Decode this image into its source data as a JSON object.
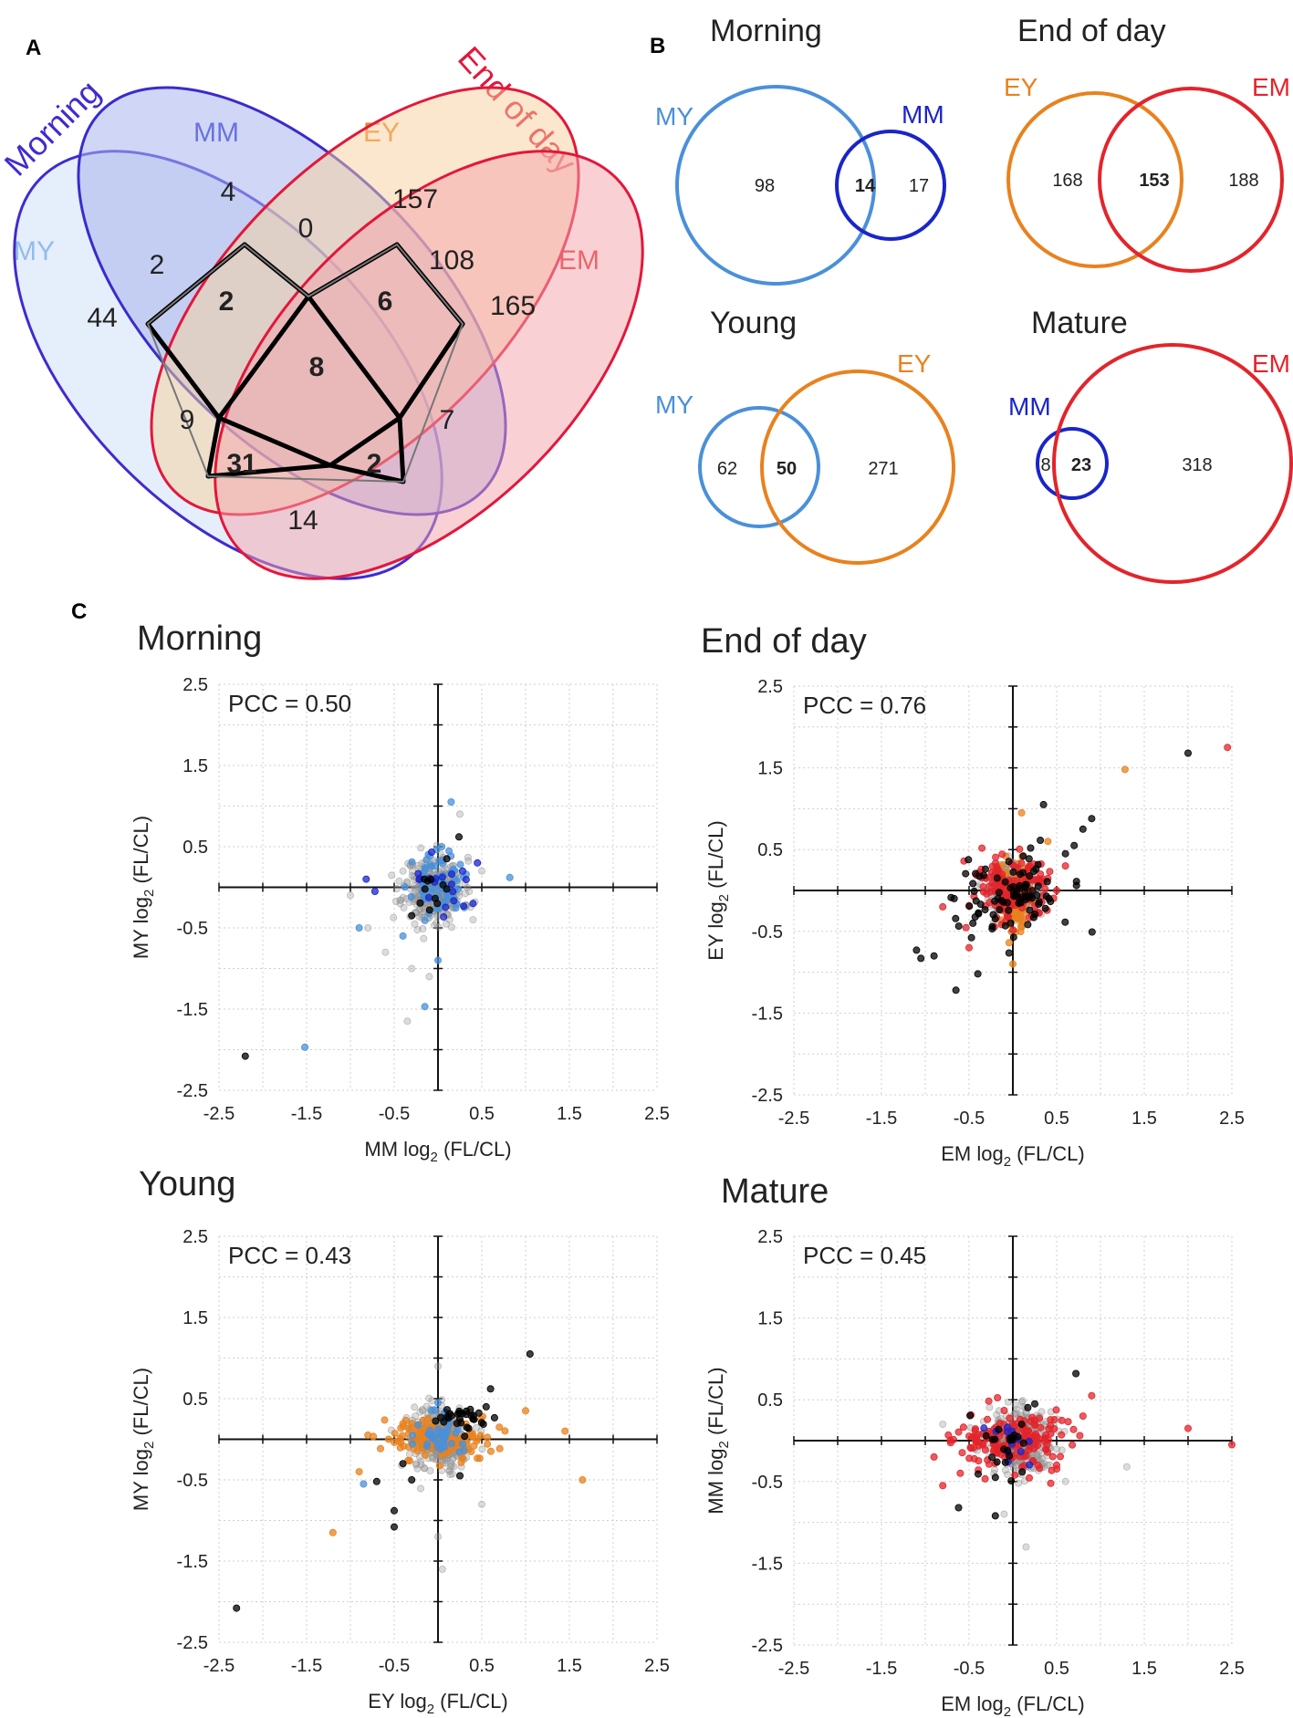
{
  "colors": {
    "morning": "#3f2bd0",
    "end_of_day": "#e3173b",
    "my": "#4a90d9",
    "mm": "#1a25c8",
    "ey": "#e8821e",
    "em": "#e3242b",
    "grey": "#9a9a9a",
    "black": "#000000"
  },
  "panel_labels": {
    "a": "A",
    "b": "B",
    "c": "C"
  },
  "panel_a": {
    "title_morning": "Morning",
    "title_end_of_day": "End of day",
    "set_labels": {
      "my": "MY",
      "mm": "MM",
      "ey": "EY",
      "em": "EM"
    },
    "regions": {
      "my_only": "44",
      "mm_only": "4",
      "ey_only": "157",
      "em_only": "165",
      "my_mm": "2",
      "mm_ey": "0",
      "ey_em": "108",
      "my_em": "14",
      "my_mm_ey": "2",
      "mm_ey_em": "6",
      "my_ey": "9",
      "mm_em": "7",
      "all": "8",
      "my_ey_em": "31",
      "my_mm_em": "2"
    }
  },
  "panel_b": {
    "morning": {
      "title": "Morning",
      "left_label": "MY",
      "right_label": "MM",
      "left_only": "98",
      "overlap": "14",
      "right_only": "17"
    },
    "end_of_day": {
      "title": "End of day",
      "left_label": "EY",
      "right_label": "EM",
      "left_only": "168",
      "overlap": "153",
      "right_only": "188"
    },
    "young": {
      "title": "Young",
      "left_label": "MY",
      "right_label": "EY",
      "left_only": "62",
      "overlap": "50",
      "right_only": "271"
    },
    "mature": {
      "title": "Mature",
      "left_label": "MM",
      "right_label": "EM",
      "left_only": "8",
      "overlap": "23",
      "right_only": "318"
    }
  },
  "chart_data": [
    {
      "type": "scatter",
      "title": "Morning",
      "annotation": "PCC = 0.50",
      "xlabel": "MM log",
      "xlabel_sub": "2",
      "xlabel_tail": " (FL/CL)",
      "ylabel": "MY log",
      "ylabel_sub": "2",
      "ylabel_tail": " (FL/CL)",
      "xlim": [
        -2.5,
        2.5
      ],
      "ylim": [
        -2.5,
        2.5
      ],
      "xticks": [
        "-2.5",
        "-1.5",
        "-0.5",
        "0.5",
        "1.5",
        "2.5"
      ],
      "yticks": [
        "2.5",
        "1.5",
        "0.5",
        "-0.5",
        "-1.5",
        "-2.5"
      ],
      "series": [
        {
          "name": "all",
          "color": "grey",
          "cluster": {
            "cx": -0.05,
            "cy": -0.03,
            "sx": 0.17,
            "sy": 0.2,
            "n": 320,
            "seed": 11
          },
          "points": [
            [
              -1.0,
              -0.1
            ],
            [
              -0.8,
              -0.5
            ],
            [
              -0.6,
              -0.8
            ],
            [
              -0.3,
              -1.0
            ],
            [
              -0.35,
              -1.65
            ],
            [
              -0.1,
              -1.1
            ],
            [
              0.4,
              -0.4
            ],
            [
              0.5,
              0.2
            ],
            [
              0.25,
              0.9
            ],
            [
              -0.4,
              0.2
            ]
          ]
        },
        {
          "name": "MY",
          "color": "my",
          "cluster": {
            "cx": 0.0,
            "cy": 0.05,
            "sx": 0.14,
            "sy": 0.18,
            "n": 70,
            "seed": 23
          },
          "points": [
            [
              -1.52,
              -1.97
            ],
            [
              -0.15,
              -1.47
            ],
            [
              0.15,
              1.05
            ],
            [
              0.82,
              0.12
            ],
            [
              0.3,
              -0.25
            ],
            [
              -0.4,
              -0.6
            ],
            [
              0.0,
              -0.9
            ],
            [
              -0.9,
              -0.5
            ]
          ]
        },
        {
          "name": "MM",
          "color": "mm",
          "cluster": {
            "cx": 0.0,
            "cy": 0.0,
            "sx": 0.2,
            "sy": 0.2,
            "n": 18,
            "seed": 31
          },
          "points": [
            [
              -0.82,
              0.1
            ],
            [
              -0.72,
              -0.05
            ],
            [
              0.45,
              0.3
            ],
            [
              0.4,
              -0.2
            ]
          ]
        },
        {
          "name": "both",
          "color": "black",
          "cluster": {
            "cx": -0.1,
            "cy": -0.05,
            "sx": 0.12,
            "sy": 0.15,
            "n": 10,
            "seed": 41
          },
          "points": [
            [
              -2.2,
              -2.08
            ],
            [
              0.24,
              0.62
            ],
            [
              -0.3,
              -0.35
            ],
            [
              0.1,
              0.35
            ]
          ]
        }
      ]
    },
    {
      "type": "scatter",
      "title": "End of day",
      "annotation": "PCC = 0.76",
      "xlabel": "EM log",
      "xlabel_sub": "2",
      "xlabel_tail": " (FL/CL)",
      "ylabel": "EY log",
      "ylabel_sub": "2",
      "ylabel_tail": " (FL/CL)",
      "xlim": [
        -2.5,
        2.5
      ],
      "ylim": [
        -2.5,
        2.5
      ],
      "xticks": [
        "-2.5",
        "-1.5",
        "-0.5",
        "0.5",
        "1.5",
        "2.5"
      ],
      "yticks": [
        "2.5",
        "1.5",
        "0.5",
        "-0.5",
        "-1.5",
        "-2.5"
      ],
      "series": [
        {
          "name": "all",
          "color": "grey",
          "cluster": {
            "cx": 0.0,
            "cy": 0.0,
            "sx": 0.16,
            "sy": 0.16,
            "n": 260,
            "seed": 51
          },
          "points": []
        },
        {
          "name": "EY",
          "color": "ey",
          "cluster": {
            "cx": 0.02,
            "cy": -0.05,
            "sx": 0.1,
            "sy": 0.25,
            "n": 110,
            "seed": 61
          },
          "points": [
            [
              1.28,
              1.48
            ],
            [
              0.0,
              -0.9
            ],
            [
              0.1,
              0.95
            ],
            [
              0.4,
              0.6
            ]
          ]
        },
        {
          "name": "EM",
          "color": "em",
          "cluster": {
            "cx": 0.0,
            "cy": 0.0,
            "sx": 0.25,
            "sy": 0.22,
            "n": 150,
            "seed": 71
          },
          "points": [
            [
              2.45,
              1.75
            ],
            [
              -0.8,
              -0.2
            ],
            [
              0.6,
              0.3
            ],
            [
              0.5,
              0.0
            ],
            [
              -0.5,
              -0.7
            ]
          ]
        },
        {
          "name": "both",
          "color": "black",
          "cluster": {
            "cx": -0.05,
            "cy": -0.05,
            "sx": 0.3,
            "sy": 0.28,
            "n": 90,
            "seed": 81
          },
          "points": [
            [
              2.0,
              1.68
            ],
            [
              0.9,
              0.88
            ],
            [
              0.8,
              0.75
            ],
            [
              0.7,
              0.55
            ],
            [
              -1.1,
              -0.73
            ],
            [
              -1.05,
              -0.83
            ],
            [
              -0.9,
              -0.8
            ],
            [
              -0.65,
              -1.22
            ],
            [
              -0.4,
              -1.02
            ],
            [
              0.35,
              1.05
            ],
            [
              0.6,
              0.45
            ]
          ]
        }
      ]
    },
    {
      "type": "scatter",
      "title": "Young",
      "annotation": "PCC = 0.43",
      "xlabel": "EY log",
      "xlabel_sub": "2",
      "xlabel_tail": " (FL/CL)",
      "ylabel": "MY log",
      "ylabel_sub": "2",
      "ylabel_tail": " (FL/CL)",
      "xlim": [
        -2.5,
        2.5
      ],
      "ylim": [
        -2.5,
        2.5
      ],
      "xticks": [
        "-2.5",
        "-1.5",
        "-0.5",
        "0.5",
        "1.5",
        "2.5"
      ],
      "yticks": [
        "2.5",
        "1.5",
        "0.5",
        "-0.5",
        "-1.5",
        "-2.5"
      ],
      "series": [
        {
          "name": "all",
          "color": "grey",
          "cluster": {
            "cx": 0.0,
            "cy": 0.0,
            "sx": 0.17,
            "sy": 0.2,
            "n": 300,
            "seed": 91
          },
          "points": [
            [
              0.0,
              -1.2
            ],
            [
              0.05,
              -1.6
            ],
            [
              0.5,
              -0.8
            ],
            [
              -0.3,
              0.2
            ],
            [
              0.0,
              0.9
            ]
          ]
        },
        {
          "name": "EY",
          "color": "ey",
          "cluster": {
            "cx": 0.0,
            "cy": 0.0,
            "sx": 0.3,
            "sy": 0.12,
            "n": 140,
            "seed": 101
          },
          "points": [
            [
              -1.2,
              -1.15
            ],
            [
              1.65,
              -0.5
            ],
            [
              1.45,
              0.1
            ],
            [
              1.0,
              0.35
            ],
            [
              -0.8,
              0.05
            ],
            [
              -0.9,
              -0.4
            ],
            [
              0.7,
              0.15
            ]
          ]
        },
        {
          "name": "MY",
          "color": "my",
          "cluster": {
            "cx": 0.0,
            "cy": 0.05,
            "sx": 0.12,
            "sy": 0.15,
            "n": 50,
            "seed": 111
          },
          "points": [
            [
              -0.85,
              -0.55
            ],
            [
              0.0,
              0.45
            ]
          ]
        },
        {
          "name": "both",
          "color": "black",
          "cluster": {
            "cx": 0.25,
            "cy": 0.28,
            "sx": 0.12,
            "sy": 0.08,
            "n": 28,
            "seed": 121
          },
          "points": [
            [
              -2.3,
              -2.08
            ],
            [
              1.05,
              1.05
            ],
            [
              0.6,
              0.62
            ],
            [
              0.55,
              0.4
            ],
            [
              0.4,
              0.25
            ],
            [
              -0.7,
              -0.52
            ],
            [
              -0.5,
              -0.88
            ],
            [
              -0.5,
              -1.08
            ],
            [
              -0.3,
              -0.5
            ],
            [
              -0.4,
              -0.3
            ],
            [
              0.25,
              -0.45
            ]
          ]
        }
      ]
    },
    {
      "type": "scatter",
      "title": "Mature",
      "annotation": "PCC = 0.45",
      "xlabel": "EM log",
      "xlabel_sub": "2",
      "xlabel_tail": " (FL/CL)",
      "ylabel": "MM log",
      "ylabel_sub": "2",
      "ylabel_tail": " (FL/CL)",
      "xlim": [
        -2.5,
        2.5
      ],
      "ylim": [
        -2.5,
        2.5
      ],
      "xticks": [
        "-2.5",
        "-1.5",
        "-0.5",
        "0.5",
        "1.5",
        "2.5"
      ],
      "yticks": [
        "2.5",
        "1.5",
        "0.5",
        "-0.5",
        "-1.5",
        "-2.5"
      ],
      "series": [
        {
          "name": "all",
          "color": "grey",
          "cluster": {
            "cx": 0.05,
            "cy": 0.0,
            "sx": 0.2,
            "sy": 0.2,
            "n": 300,
            "seed": 131
          },
          "points": [
            [
              1.3,
              -0.32
            ],
            [
              0.15,
              -1.3
            ],
            [
              -0.1,
              -0.9
            ],
            [
              0.6,
              -0.5
            ],
            [
              -0.8,
              0.2
            ]
          ]
        },
        {
          "name": "EM",
          "color": "em",
          "cluster": {
            "cx": 0.0,
            "cy": 0.0,
            "sx": 0.3,
            "sy": 0.17,
            "n": 180,
            "seed": 141
          },
          "points": [
            [
              2.5,
              -0.05
            ],
            [
              2.0,
              0.15
            ],
            [
              0.9,
              0.55
            ],
            [
              0.8,
              0.3
            ],
            [
              -0.8,
              -0.55
            ],
            [
              -0.9,
              -0.2
            ],
            [
              -0.6,
              -0.4
            ],
            [
              0.5,
              -0.3
            ]
          ]
        },
        {
          "name": "MM",
          "color": "mm",
          "cluster": {
            "cx": 0.0,
            "cy": 0.0,
            "sx": 0.12,
            "sy": 0.12,
            "n": 12,
            "seed": 151
          },
          "points": []
        },
        {
          "name": "both",
          "color": "black",
          "cluster": {
            "cx": -0.1,
            "cy": -0.05,
            "sx": 0.18,
            "sy": 0.2,
            "n": 22,
            "seed": 161
          },
          "points": [
            [
              0.72,
              0.82
            ],
            [
              -0.62,
              -0.82
            ],
            [
              -0.2,
              -0.92
            ],
            [
              -0.2,
              -0.45
            ],
            [
              0.25,
              0.45
            ],
            [
              0.1,
              0.2
            ]
          ]
        }
      ]
    }
  ]
}
